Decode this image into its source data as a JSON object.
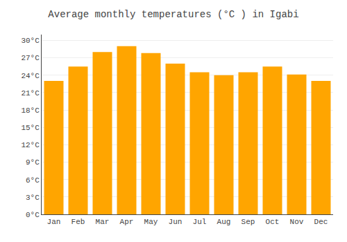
{
  "chart_data": {
    "type": "bar",
    "title": "Average monthly temperatures (°C ) in Igabi",
    "categories": [
      "Jan",
      "Feb",
      "Mar",
      "Apr",
      "May",
      "Jun",
      "Jul",
      "Aug",
      "Sep",
      "Oct",
      "Nov",
      "Dec"
    ],
    "values": [
      23.0,
      25.5,
      28.0,
      29.0,
      27.8,
      26.0,
      24.5,
      24.0,
      24.5,
      25.5,
      24.1,
      23.0
    ],
    "color": "#FFA500",
    "ylim": [
      0,
      31
    ],
    "yticks": [
      {
        "value": 0,
        "label": "0°C"
      },
      {
        "value": 3,
        "label": "3°C"
      },
      {
        "value": 6,
        "label": "6°C"
      },
      {
        "value": 9,
        "label": "9°C"
      },
      {
        "value": 12,
        "label": "12°C"
      },
      {
        "value": 15,
        "label": "15°C"
      },
      {
        "value": 18,
        "label": "18°C"
      },
      {
        "value": 21,
        "label": "21°C"
      },
      {
        "value": 24,
        "label": "24°C"
      },
      {
        "value": 27,
        "label": "27°C"
      },
      {
        "value": 30,
        "label": "30°C"
      }
    ],
    "grid": true
  }
}
